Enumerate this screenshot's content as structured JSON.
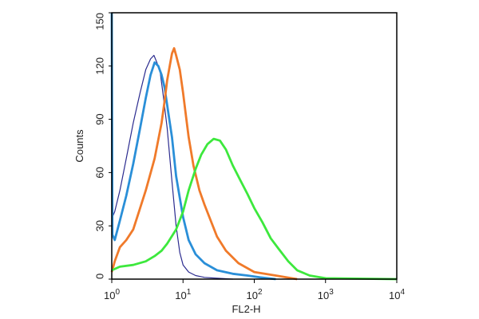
{
  "chart_data": {
    "type": "line",
    "xlabel": "FL2-H",
    "ylabel": "Counts",
    "x_scale": "log",
    "xlim": [
      1,
      10000
    ],
    "ylim": [
      0,
      150
    ],
    "x_ticks": [
      {
        "value": 1,
        "base": "10",
        "exp": "0"
      },
      {
        "value": 10,
        "base": "10",
        "exp": "1"
      },
      {
        "value": 100,
        "base": "10",
        "exp": "2"
      },
      {
        "value": 1000,
        "base": "10",
        "exp": "3"
      },
      {
        "value": 10000,
        "base": "10",
        "exp": "4"
      }
    ],
    "y_ticks": [
      {
        "value": 0,
        "label": "0"
      },
      {
        "value": 30,
        "label": "30"
      },
      {
        "value": 60,
        "label": "60"
      },
      {
        "value": 90,
        "label": "90"
      },
      {
        "value": 120,
        "label": "120"
      },
      {
        "value": 150,
        "label": "150"
      }
    ],
    "grid": false,
    "legend": "none",
    "series": [
      {
        "color": "#2b2b8f",
        "x": [
          1.02,
          1.1,
          1.3,
          1.6,
          2.0,
          2.5,
          3.0,
          3.5,
          3.9,
          4.3,
          4.8,
          5.3,
          6.0,
          7.0,
          8.0,
          9.0,
          10.0,
          12.0,
          15.0,
          20.0,
          30.0,
          50.0
        ],
        "y": [
          35,
          38,
          50,
          68,
          88,
          105,
          118,
          124,
          126,
          122,
          116,
          103,
          85,
          55,
          30,
          15,
          8,
          4,
          2,
          1,
          0.5,
          0
        ]
      },
      {
        "color": "#2a8fd8",
        "x": [
          1.0,
          1.02,
          1.1,
          1.3,
          1.6,
          2.0,
          2.5,
          3.0,
          3.5,
          4.0,
          4.5,
          5.0,
          5.5,
          6.0,
          7.0,
          8.0,
          10.0,
          12.0,
          15.0,
          20.0,
          30.0,
          50.0,
          80.0,
          120.0,
          200.0
        ],
        "y": [
          150,
          25,
          22,
          33,
          47,
          65,
          85,
          102,
          115,
          122,
          120,
          115,
          108,
          98,
          80,
          58,
          35,
          22,
          14,
          9,
          5,
          3,
          2,
          1,
          0
        ]
      },
      {
        "color": "#f07a2a",
        "x": [
          1.0,
          1.1,
          1.3,
          1.6,
          2.0,
          2.5,
          3.0,
          4.0,
          5.0,
          5.5,
          6.0,
          6.5,
          7.0,
          7.5,
          8.0,
          9.0,
          10.0,
          11.0,
          12.0,
          14.0,
          17.0,
          20.0,
          25.0,
          30.0,
          40.0,
          60.0,
          100.0,
          200.0,
          400.0
        ],
        "y": [
          4,
          10,
          18,
          22,
          28,
          40,
          50,
          68,
          88,
          100,
          112,
          120,
          127,
          130,
          126,
          118,
          105,
          92,
          80,
          64,
          50,
          42,
          32,
          24,
          16,
          9,
          4,
          2,
          0
        ]
      },
      {
        "color": "#3de83d",
        "x": [
          1.0,
          1.3,
          2.0,
          3.0,
          4.0,
          5.0,
          6.0,
          8.0,
          10.0,
          12.0,
          15.0,
          18.0,
          22.0,
          27.0,
          33.0,
          40.0,
          50.0,
          65.0,
          80.0,
          100.0,
          130.0,
          170.0,
          220.0,
          300.0,
          400.0,
          600.0,
          1000.0,
          10000.0
        ],
        "y": [
          5,
          7,
          8,
          10,
          13,
          16,
          20,
          28,
          38,
          50,
          62,
          70,
          76,
          79,
          78,
          73,
          64,
          55,
          48,
          40,
          32,
          23,
          17,
          10,
          5,
          2,
          0.5,
          0
        ]
      }
    ]
  }
}
